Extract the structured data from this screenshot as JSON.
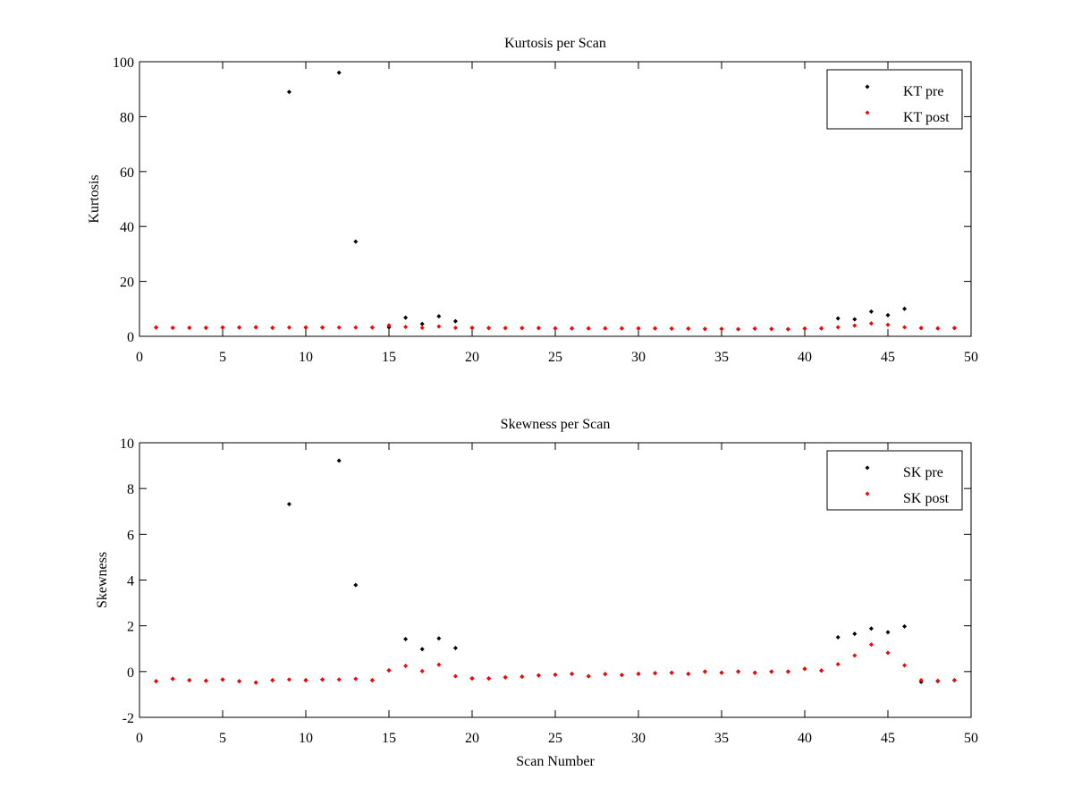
{
  "chart_data": [
    {
      "type": "scatter",
      "title": "Kurtosis per Scan",
      "xlabel": "",
      "ylabel": "Kurtosis",
      "xlim": [
        0,
        50
      ],
      "ylim": [
        0,
        100
      ],
      "xticks": [
        0,
        5,
        10,
        15,
        20,
        25,
        30,
        35,
        40,
        45,
        50
      ],
      "yticks": [
        0,
        20,
        40,
        60,
        80,
        100
      ],
      "grid": false,
      "legend_position": "top-right",
      "series": [
        {
          "name": "KT pre",
          "color": "#000000",
          "points": [
            [
              1,
              3.2
            ],
            [
              2,
              3.1
            ],
            [
              3,
              3.1
            ],
            [
              4,
              3.1
            ],
            [
              5,
              3.2
            ],
            [
              6,
              3.2
            ],
            [
              7,
              3.3
            ],
            [
              8,
              3.1
            ],
            [
              9,
              89.0
            ],
            [
              10,
              3.2
            ],
            [
              11,
              3.2
            ],
            [
              12,
              96.0
            ],
            [
              13,
              34.5
            ],
            [
              14,
              3.2
            ],
            [
              15,
              3.3
            ],
            [
              16,
              6.8
            ],
            [
              17,
              4.5
            ],
            [
              18,
              7.3
            ],
            [
              19,
              5.5
            ],
            [
              20,
              3.1
            ],
            [
              21,
              3.0
            ],
            [
              22,
              3.0
            ],
            [
              23,
              3.0
            ],
            [
              24,
              3.0
            ],
            [
              25,
              2.9
            ],
            [
              26,
              2.9
            ],
            [
              27,
              2.9
            ],
            [
              28,
              2.9
            ],
            [
              29,
              2.9
            ],
            [
              30,
              2.9
            ],
            [
              31,
              2.9
            ],
            [
              32,
              2.8
            ],
            [
              33,
              2.8
            ],
            [
              34,
              2.7
            ],
            [
              35,
              2.7
            ],
            [
              36,
              2.6
            ],
            [
              37,
              2.8
            ],
            [
              38,
              2.7
            ],
            [
              39,
              2.6
            ],
            [
              40,
              2.8
            ],
            [
              41,
              2.9
            ],
            [
              42,
              6.5
            ],
            [
              43,
              6.2
            ],
            [
              44,
              9.0
            ],
            [
              45,
              7.7
            ],
            [
              46,
              10.0
            ],
            [
              47,
              3.0
            ],
            [
              48,
              2.9
            ],
            [
              49,
              3.0
            ]
          ]
        },
        {
          "name": "KT post",
          "color": "#ff0000",
          "points": [
            [
              1,
              3.2
            ],
            [
              2,
              3.1
            ],
            [
              3,
              3.1
            ],
            [
              4,
              3.1
            ],
            [
              5,
              3.2
            ],
            [
              6,
              3.2
            ],
            [
              7,
              3.3
            ],
            [
              8,
              3.1
            ],
            [
              9,
              3.2
            ],
            [
              10,
              3.2
            ],
            [
              11,
              3.2
            ],
            [
              12,
              3.2
            ],
            [
              13,
              3.2
            ],
            [
              14,
              3.2
            ],
            [
              15,
              4.0
            ],
            [
              16,
              3.4
            ],
            [
              17,
              3.1
            ],
            [
              18,
              3.6
            ],
            [
              19,
              3.1
            ],
            [
              20,
              3.0
            ],
            [
              21,
              3.0
            ],
            [
              22,
              3.0
            ],
            [
              23,
              3.0
            ],
            [
              24,
              3.0
            ],
            [
              25,
              2.9
            ],
            [
              26,
              2.9
            ],
            [
              27,
              2.9
            ],
            [
              28,
              2.9
            ],
            [
              29,
              2.9
            ],
            [
              30,
              2.9
            ],
            [
              31,
              2.9
            ],
            [
              32,
              2.8
            ],
            [
              33,
              2.8
            ],
            [
              34,
              2.7
            ],
            [
              35,
              2.7
            ],
            [
              36,
              2.6
            ],
            [
              37,
              2.8
            ],
            [
              38,
              2.7
            ],
            [
              39,
              2.6
            ],
            [
              40,
              2.8
            ],
            [
              41,
              2.9
            ],
            [
              42,
              3.3
            ],
            [
              43,
              3.9
            ],
            [
              44,
              4.7
            ],
            [
              45,
              4.2
            ],
            [
              46,
              3.3
            ],
            [
              47,
              3.0
            ],
            [
              48,
              2.9
            ],
            [
              49,
              3.0
            ]
          ]
        }
      ]
    },
    {
      "type": "scatter",
      "title": "Skewness per Scan",
      "xlabel": "Scan Number",
      "ylabel": "Skewness",
      "xlim": [
        0,
        50
      ],
      "ylim": [
        -2,
        10
      ],
      "xticks": [
        0,
        5,
        10,
        15,
        20,
        25,
        30,
        35,
        40,
        45,
        50
      ],
      "yticks": [
        -2,
        0,
        2,
        4,
        6,
        8,
        10
      ],
      "grid": false,
      "legend_position": "top-right",
      "series": [
        {
          "name": "SK pre",
          "color": "#000000",
          "points": [
            [
              1,
              -0.42
            ],
            [
              2,
              -0.32
            ],
            [
              3,
              -0.38
            ],
            [
              4,
              -0.4
            ],
            [
              5,
              -0.35
            ],
            [
              6,
              -0.42
            ],
            [
              7,
              -0.48
            ],
            [
              8,
              -0.38
            ],
            [
              9,
              7.32
            ],
            [
              10,
              -0.38
            ],
            [
              11,
              -0.35
            ],
            [
              12,
              9.22
            ],
            [
              13,
              3.78
            ],
            [
              14,
              -0.38
            ],
            [
              15,
              0.05
            ],
            [
              16,
              1.42
            ],
            [
              17,
              0.98
            ],
            [
              18,
              1.45
            ],
            [
              19,
              1.03
            ],
            [
              20,
              -0.3
            ],
            [
              21,
              -0.3
            ],
            [
              22,
              -0.25
            ],
            [
              23,
              -0.22
            ],
            [
              24,
              -0.17
            ],
            [
              25,
              -0.14
            ],
            [
              26,
              -0.1
            ],
            [
              27,
              -0.2
            ],
            [
              28,
              -0.11
            ],
            [
              29,
              -0.15
            ],
            [
              30,
              -0.1
            ],
            [
              31,
              -0.07
            ],
            [
              32,
              -0.05
            ],
            [
              33,
              -0.1
            ],
            [
              34,
              0.0
            ],
            [
              35,
              -0.05
            ],
            [
              36,
              0.0
            ],
            [
              37,
              -0.05
            ],
            [
              38,
              0.0
            ],
            [
              39,
              0.0
            ],
            [
              40,
              0.12
            ],
            [
              41,
              0.04
            ],
            [
              42,
              1.5
            ],
            [
              43,
              1.65
            ],
            [
              44,
              1.88
            ],
            [
              45,
              1.72
            ],
            [
              46,
              1.97
            ],
            [
              47,
              -0.45
            ],
            [
              48,
              -0.42
            ],
            [
              49,
              -0.38
            ]
          ]
        },
        {
          "name": "SK post",
          "color": "#ff0000",
          "points": [
            [
              1,
              -0.42
            ],
            [
              2,
              -0.32
            ],
            [
              3,
              -0.38
            ],
            [
              4,
              -0.4
            ],
            [
              5,
              -0.35
            ],
            [
              6,
              -0.42
            ],
            [
              7,
              -0.48
            ],
            [
              8,
              -0.38
            ],
            [
              9,
              -0.35
            ],
            [
              10,
              -0.38
            ],
            [
              11,
              -0.35
            ],
            [
              12,
              -0.35
            ],
            [
              13,
              -0.32
            ],
            [
              14,
              -0.38
            ],
            [
              15,
              0.05
            ],
            [
              16,
              0.25
            ],
            [
              17,
              0.02
            ],
            [
              18,
              0.3
            ],
            [
              19,
              -0.2
            ],
            [
              20,
              -0.3
            ],
            [
              21,
              -0.3
            ],
            [
              22,
              -0.25
            ],
            [
              23,
              -0.22
            ],
            [
              24,
              -0.17
            ],
            [
              25,
              -0.14
            ],
            [
              26,
              -0.1
            ],
            [
              27,
              -0.2
            ],
            [
              28,
              -0.11
            ],
            [
              29,
              -0.15
            ],
            [
              30,
              -0.1
            ],
            [
              31,
              -0.07
            ],
            [
              32,
              -0.05
            ],
            [
              33,
              -0.1
            ],
            [
              34,
              0.0
            ],
            [
              35,
              -0.05
            ],
            [
              36,
              0.0
            ],
            [
              37,
              -0.05
            ],
            [
              38,
              0.0
            ],
            [
              39,
              0.0
            ],
            [
              40,
              0.12
            ],
            [
              41,
              0.04
            ],
            [
              42,
              0.32
            ],
            [
              43,
              0.7
            ],
            [
              44,
              1.18
            ],
            [
              45,
              0.82
            ],
            [
              46,
              0.27
            ],
            [
              47,
              -0.38
            ],
            [
              48,
              -0.4
            ],
            [
              49,
              -0.38
            ]
          ]
        }
      ]
    }
  ]
}
